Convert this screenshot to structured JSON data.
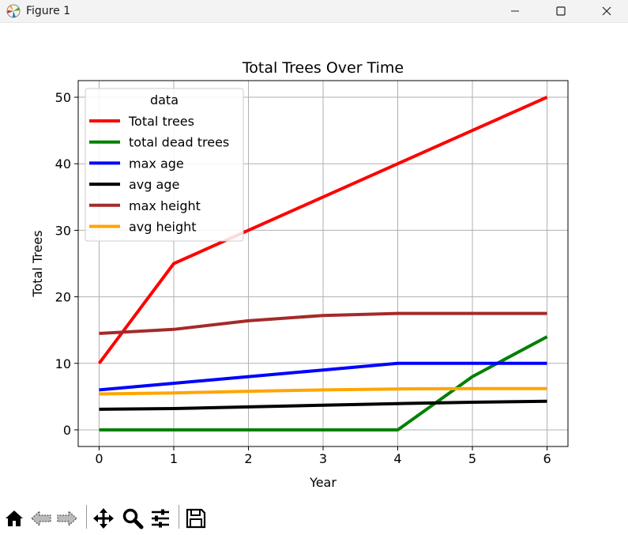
{
  "window": {
    "title": "Figure 1",
    "icons": [
      "matplotlib-icon",
      "minimize-icon",
      "maximize-icon",
      "close-icon"
    ]
  },
  "toolbar": {
    "buttons": [
      "home-icon",
      "back-icon",
      "forward-icon",
      "pan-icon",
      "zoom-icon",
      "configure-subplots-icon",
      "save-icon"
    ]
  },
  "chart_data": {
    "type": "line",
    "title": "Total Trees Over Time",
    "xlabel": "Year",
    "ylabel": "Total Trees",
    "xlim": [
      -0.28,
      6.28
    ],
    "ylim": [
      -2.5,
      52.5
    ],
    "xticks": [
      0,
      1,
      2,
      3,
      4,
      5,
      6
    ],
    "yticks": [
      0,
      10,
      20,
      30,
      40,
      50
    ],
    "grid": true,
    "legend": {
      "title": "data",
      "placement": "upper-left"
    },
    "x": [
      0,
      1,
      2,
      3,
      4,
      5,
      6
    ],
    "series": [
      {
        "name": "Total trees",
        "color": "#ff0000",
        "values": [
          10,
          25,
          30,
          35,
          40,
          45,
          50
        ]
      },
      {
        "name": "total dead trees",
        "color": "#008000",
        "values": [
          0,
          0,
          0,
          0,
          0,
          8,
          14
        ]
      },
      {
        "name": "max age",
        "color": "#0000ff",
        "values": [
          6,
          7,
          8,
          9,
          10,
          10,
          10
        ]
      },
      {
        "name": "avg age",
        "color": "#000000",
        "values": [
          3.1,
          3.2,
          3.45,
          3.7,
          3.95,
          4.15,
          4.3
        ]
      },
      {
        "name": "max height",
        "color": "#a52a2a",
        "values": [
          14.5,
          15.1,
          16.4,
          17.2,
          17.5,
          17.5,
          17.5
        ]
      },
      {
        "name": "avg height",
        "color": "#ffa500",
        "values": [
          5.4,
          5.55,
          5.8,
          6.0,
          6.15,
          6.2,
          6.2
        ]
      }
    ]
  }
}
